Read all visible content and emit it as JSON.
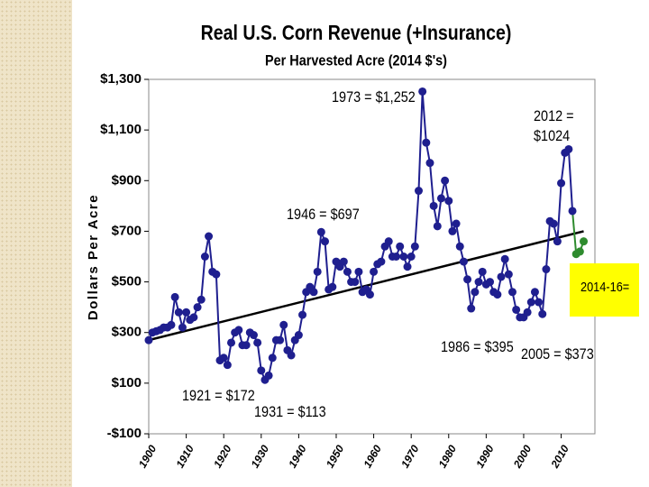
{
  "chart_data": {
    "type": "line",
    "title": "Real U.S. Corn Revenue (+Insurance)",
    "subtitle": "Per Harvested Acre (2014 $'s)",
    "y_label": "Dollars Per Acre",
    "xlim": [
      1900,
      2019
    ],
    "xticks": [
      1900,
      1910,
      1920,
      1930,
      1940,
      1950,
      1960,
      1970,
      1980,
      1990,
      2000,
      2010
    ],
    "ylim": [
      -100,
      1300
    ],
    "yticks": [
      {
        "value": -100,
        "label": "-$100"
      },
      {
        "value": 100,
        "label": "$100"
      },
      {
        "value": 300,
        "label": "$300"
      },
      {
        "value": 500,
        "label": "$500"
      },
      {
        "value": 700,
        "label": "$700"
      },
      {
        "value": 900,
        "label": "$900"
      },
      {
        "value": 1100,
        "label": "$1,100"
      },
      {
        "value": 1300,
        "label": "$1,300"
      }
    ],
    "series": [
      {
        "color": "#1f1f8f",
        "x": [
          1900,
          1901,
          1902,
          1903,
          1904,
          1905,
          1906,
          1907,
          1908,
          1909,
          1910,
          1911,
          1912,
          1913,
          1914,
          1915,
          1916,
          1917,
          1918,
          1919,
          1920,
          1921,
          1922,
          1923,
          1924,
          1925,
          1926,
          1927,
          1928,
          1929,
          1930,
          1931,
          1932,
          1933,
          1934,
          1935,
          1936,
          1937,
          1938,
          1939,
          1940,
          1941,
          1942,
          1943,
          1944,
          1945,
          1946,
          1947,
          1948,
          1949,
          1950,
          1951,
          1952,
          1953,
          1954,
          1955,
          1956,
          1957,
          1958,
          1959,
          1960,
          1961,
          1962,
          1963,
          1964,
          1965,
          1966,
          1967,
          1968,
          1969,
          1970,
          1971,
          1972,
          1973,
          1974,
          1975,
          1976,
          1977,
          1978,
          1979,
          1980,
          1981,
          1982,
          1983,
          1984,
          1985,
          1986,
          1987,
          1988,
          1989,
          1990,
          1991,
          1992,
          1993,
          1994,
          1995,
          1996,
          1997,
          1998,
          1999,
          2000,
          2001,
          2002,
          2003,
          2004,
          2005,
          2006,
          2007,
          2008,
          2009,
          2010,
          2011,
          2012,
          2013
        ],
        "values": [
          270,
          300,
          305,
          310,
          320,
          320,
          330,
          440,
          380,
          320,
          380,
          350,
          360,
          400,
          430,
          600,
          680,
          540,
          530,
          190,
          200,
          172,
          260,
          300,
          310,
          250,
          250,
          300,
          290,
          260,
          150,
          113,
          130,
          200,
          270,
          270,
          330,
          230,
          210,
          270,
          290,
          370,
          460,
          480,
          460,
          540,
          697,
          660,
          470,
          480,
          580,
          560,
          580,
          540,
          500,
          500,
          540,
          460,
          470,
          450,
          540,
          570,
          580,
          640,
          660,
          600,
          600,
          640,
          600,
          560,
          600,
          640,
          860,
          1252,
          1050,
          970,
          800,
          720,
          830,
          900,
          820,
          700,
          730,
          640,
          580,
          510,
          395,
          460,
          500,
          540,
          490,
          500,
          460,
          450,
          520,
          590,
          530,
          460,
          390,
          360,
          360,
          380,
          420,
          460,
          420,
          373,
          550,
          740,
          730,
          660,
          890,
          1010,
          1024,
          780
        ]
      },
      {
        "color": "#2e8b2e",
        "x": [
          2014,
          2015,
          2016
        ],
        "values": [
          610,
          620,
          660
        ]
      }
    ],
    "trendline": {
      "color": "#000000",
      "x": [
        1900,
        2016
      ],
      "values": [
        270,
        700
      ]
    },
    "annotations": [
      "1973 = $1,252",
      "2012 = $1024",
      "1946 = $697",
      "1921 = $172",
      "1931 = $113",
      "1986 = $395",
      "2005 = $373",
      "2014-16="
    ]
  }
}
